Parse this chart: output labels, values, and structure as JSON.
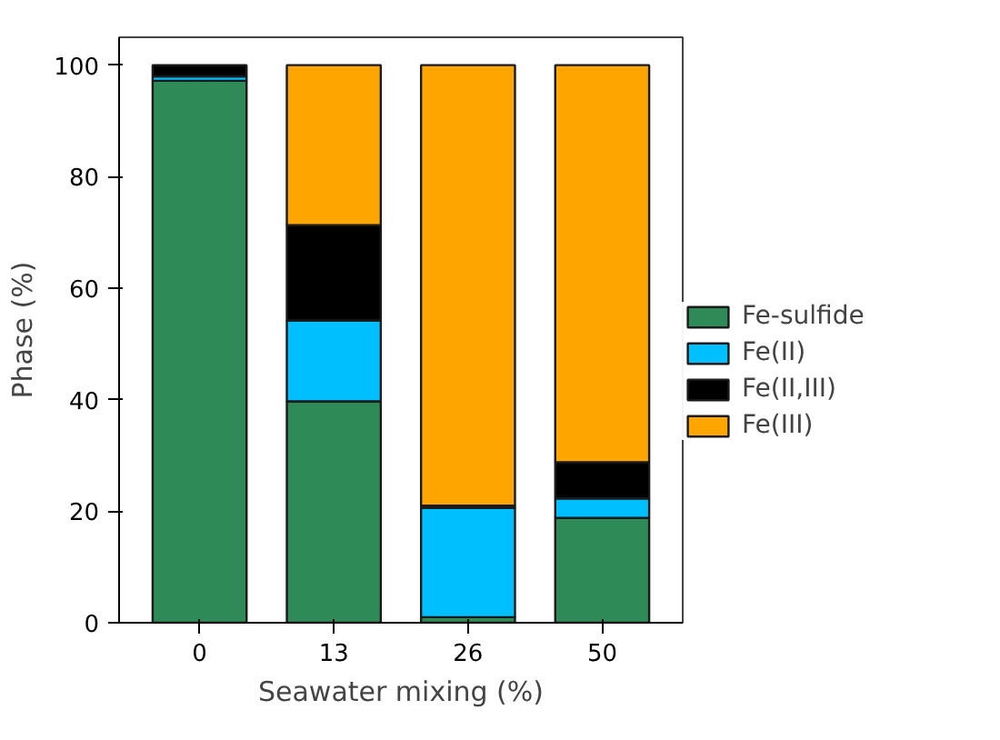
{
  "chart_data": {
    "type": "bar",
    "stacked": true,
    "xlabel": "Seawater mixing (%)",
    "ylabel": "Phase (%)",
    "categories": [
      "0",
      "13",
      "26",
      "50"
    ],
    "series": [
      {
        "name": "Fe-sulfide",
        "color": "#2e8b57",
        "values": [
          97.2,
          39.7,
          1.0,
          18.8
        ]
      },
      {
        "name": "Fe(II)",
        "color": "#00bfff",
        "values": [
          0.8,
          14.5,
          19.6,
          3.5
        ]
      },
      {
        "name": "Fe(II,III)",
        "color": "#000000",
        "values": [
          2.0,
          17.1,
          0.4,
          6.5
        ]
      },
      {
        "name": "Fe(III)",
        "color": "#ffa500",
        "values": [
          0,
          28.7,
          79.0,
          71.2
        ]
      }
    ],
    "ylim": [
      0,
      105
    ],
    "yticks": [
      0,
      20,
      40,
      60,
      80,
      100
    ],
    "grid": false,
    "legend": "right"
  }
}
